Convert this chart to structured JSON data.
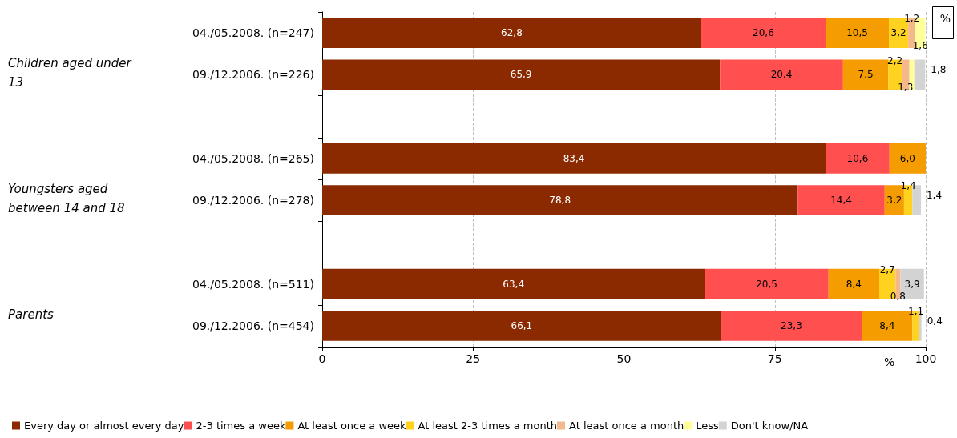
{
  "chart_data": {
    "type": "bar",
    "orientation": "horizontal",
    "stacked": true,
    "categories": [
      "04./05.2008. (n=247)",
      "09./12.2006. (n=226)",
      null,
      "04./05.2008. (n=265)",
      "09./12.2006. (n=278)",
      null,
      "04./05.2008. (n=511)",
      "09./12.2006. (n=454)"
    ],
    "series": [
      {
        "name": "Every day or almost every day",
        "color": "#8b2a00",
        "values": [
          62.8,
          65.9,
          null,
          83.4,
          78.8,
          null,
          63.4,
          66.1
        ],
        "value_labels": [
          "62,8",
          "65,9",
          null,
          "83,4",
          "78,8",
          null,
          "63,4",
          "66,1"
        ]
      },
      {
        "name": "2-3 times a week",
        "color": "#ff4f4f",
        "values": [
          20.6,
          20.4,
          null,
          10.6,
          14.4,
          null,
          20.5,
          23.3
        ],
        "value_labels": [
          "20,6",
          "20,4",
          null,
          "10,6",
          "14,4",
          null,
          "20,5",
          "23,3"
        ]
      },
      {
        "name": "At least once a week",
        "color": "#f59c00",
        "values": [
          10.5,
          7.5,
          null,
          6.0,
          3.2,
          null,
          8.4,
          8.4
        ],
        "value_labels": [
          "10,5",
          "7,5",
          null,
          "6,0",
          "3,2",
          null,
          "8,4",
          "8,4"
        ]
      },
      {
        "name": "At least 2-3 times a month",
        "color": "#ffd21f",
        "values": [
          3.2,
          2.2,
          null,
          null,
          1.4,
          null,
          2.7,
          1.1
        ],
        "value_labels": [
          "3,2",
          "2,2",
          null,
          null,
          "1,4",
          null,
          "2,7",
          "1,1"
        ]
      },
      {
        "name": "At least once a month",
        "color": "#f5b88a",
        "values": [
          1.2,
          1.3,
          null,
          null,
          null,
          null,
          0.8,
          null
        ],
        "value_labels": [
          "1,2",
          "1,3",
          null,
          null,
          null,
          null,
          "0,8",
          null
        ]
      },
      {
        "name": "Less",
        "color": "#ffff99",
        "values": [
          1.6,
          0.8,
          null,
          null,
          null,
          null,
          null,
          null
        ],
        "value_labels": [
          "1,6",
          null,
          null,
          null,
          null,
          null,
          null,
          null
        ]
      },
      {
        "name": "Don't know/NA",
        "color": "#d3d3d3",
        "values": [
          null,
          1.8,
          null,
          null,
          1.4,
          null,
          3.9,
          0.4
        ],
        "value_labels": [
          null,
          "1,8",
          null,
          null,
          "1,4",
          null,
          "3,9",
          "0,4"
        ]
      }
    ],
    "xlim": [
      0,
      100
    ],
    "xticks": [
      0,
      25,
      50,
      75,
      100
    ],
    "xlabel": "%",
    "grid": "x",
    "legend": "bottom",
    "annotations": [
      "Children aged under 13",
      "Youngsters aged between 14 and 18",
      "Parents",
      "%"
    ]
  }
}
